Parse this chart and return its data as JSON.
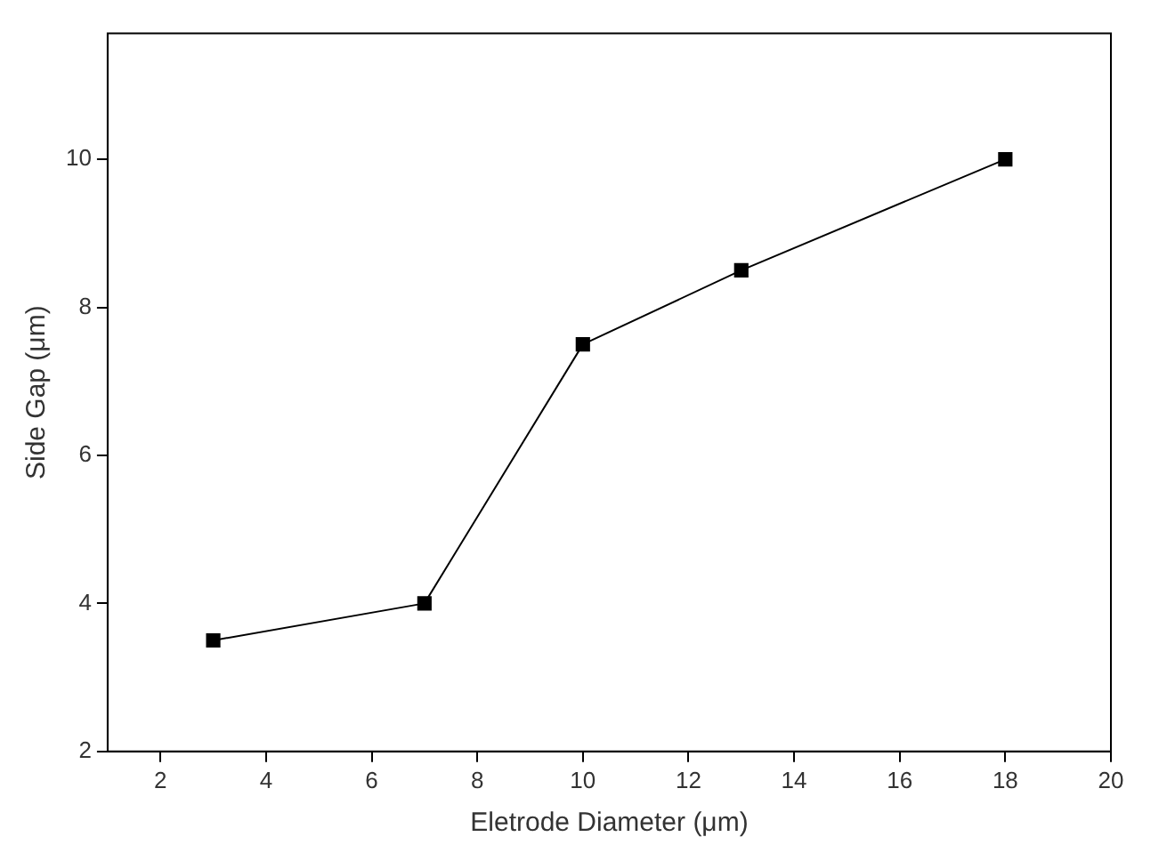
{
  "chart_data": {
    "type": "line",
    "xlabel": "Eletrode Diameter (μm)",
    "ylabel": "Side Gap (μm)",
    "x": [
      3,
      7,
      10,
      13,
      18
    ],
    "series": [
      {
        "color": "#000000",
        "values": [
          3.5,
          4,
          7.5,
          8.5,
          10
        ]
      }
    ],
    "xlim": [
      1,
      20
    ],
    "xticks": [
      2,
      4,
      6,
      8,
      10,
      12,
      14,
      16,
      18,
      20
    ],
    "ylim": [
      2,
      11.7
    ],
    "yticks": [
      2,
      4,
      6,
      8,
      10
    ],
    "grid": false,
    "legend": false,
    "marker": "square",
    "line_style": "solid"
  }
}
